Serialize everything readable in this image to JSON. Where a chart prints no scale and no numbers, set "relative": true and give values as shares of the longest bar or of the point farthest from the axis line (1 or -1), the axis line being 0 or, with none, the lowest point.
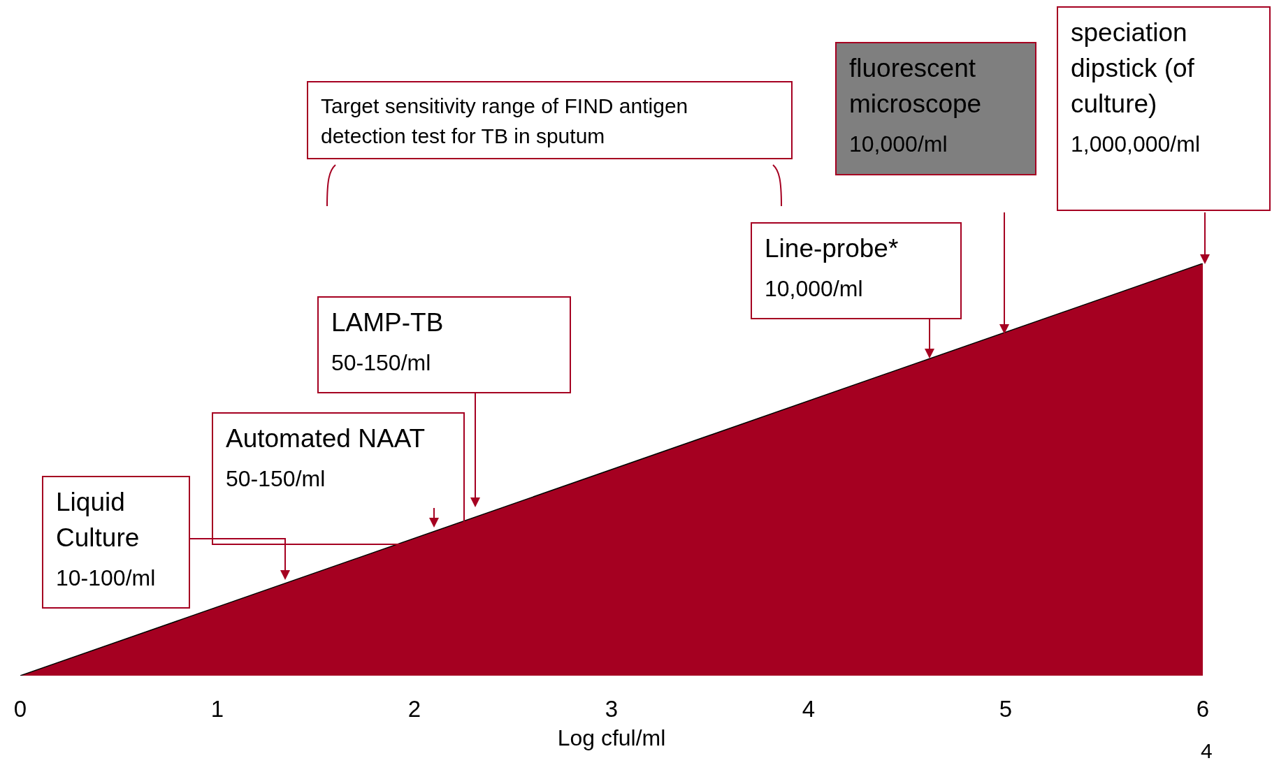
{
  "chart_data": {
    "type": "area",
    "relative": true,
    "xlabel": "Log cful/ml",
    "x": [
      0,
      6
    ],
    "values": [
      0,
      1
    ],
    "color": "#a50021",
    "xlim": [
      0,
      6
    ],
    "xticks": [
      0,
      1,
      2,
      3,
      4,
      5,
      6
    ],
    "annotations": [
      "Liquid Culture\n10-100/ml",
      "Automated NAAT\n50-150/ml",
      "LAMP-TB\n50-150/ml",
      "Line-probe*\n10,000/ml",
      "fluorescent microscope\n10,000/ml",
      "speciation dipstick (of culture)\n1,000,000/ml",
      "Target sensitivity range of FIND antigen detection test for TB in sputum",
      "4"
    ]
  }
}
